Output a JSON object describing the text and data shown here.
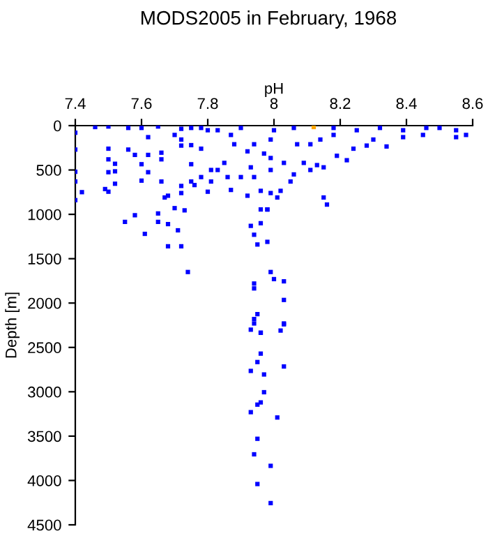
{
  "chart_data": {
    "type": "scatter",
    "title": "MODS2005 in February, 1968",
    "xlabel": "pH",
    "ylabel": "Depth [m]",
    "xlim": [
      7.4,
      8.6
    ],
    "xticks": [
      7.4,
      7.6,
      7.8,
      8,
      8.2,
      8.4,
      8.6
    ],
    "ylim": [
      4500,
      0
    ],
    "yticks": [
      0,
      500,
      1000,
      1500,
      2000,
      2500,
      3000,
      3500,
      4000,
      4500
    ],
    "marker": "square",
    "grid": false,
    "legend": false,
    "series": [
      {
        "color": "#0000ff",
        "x": [
          7.4,
          7.4,
          7.4,
          7.4,
          7.4,
          7.42,
          7.46,
          7.5,
          7.5,
          7.5,
          7.52,
          7.5,
          7.52,
          7.52,
          7.49,
          7.5,
          7.56,
          7.56,
          7.58,
          7.6,
          7.6,
          7.62,
          7.6,
          7.62,
          7.62,
          7.65,
          7.66,
          7.66,
          7.66,
          7.55,
          7.58,
          7.61,
          7.65,
          7.65,
          7.68,
          7.67,
          7.68,
          7.7,
          7.71,
          7.68,
          7.72,
          7.73,
          7.72,
          7.72,
          7.72,
          7.72,
          7.7,
          7.74,
          7.75,
          7.75,
          7.75,
          7.76,
          7.78,
          7.78,
          7.8,
          7.81,
          7.81,
          7.83,
          7.85,
          7.87,
          7.86,
          7.88,
          7.9,
          7.92,
          7.78,
          7.8,
          7.83,
          7.75,
          7.72,
          7.87,
          7.9,
          7.92,
          7.93,
          7.94,
          7.95,
          7.98,
          7.96,
          7.96,
          7.98,
          7.99,
          7.94,
          7.94,
          8.0,
          7.95,
          7.94,
          7.96,
          7.93,
          7.94,
          7.96,
          7.97,
          7.94,
          7.99,
          7.99,
          8.0,
          8.06,
          8.18,
          8.25,
          8.32,
          8.39,
          8.46,
          8.5,
          8.55,
          8.58,
          8.55,
          8.45,
          8.39,
          8.34,
          8.3,
          8.28,
          8.24,
          8.19,
          8.22,
          8.15,
          8.13,
          8.09,
          8.11,
          8.06,
          8.05,
          8.02,
          8.01,
          8.15,
          8.16,
          8.03,
          8.07,
          8.11,
          8.14,
          8.18,
          7.99,
          7.99,
          7.98,
          8.03,
          8.03,
          8.03,
          8.02,
          8.03,
          7.93,
          7.96,
          7.96,
          7.95,
          8.03,
          7.93,
          7.97,
          7.97,
          7.96,
          7.95,
          7.93,
          8.01,
          7.95,
          7.94,
          7.99,
          7.95,
          7.99,
          7.94
        ],
        "values": [
          80,
          270,
          520,
          630,
          840,
          750,
          16,
          10,
          260,
          380,
          430,
          525,
          515,
          655,
          715,
          745,
          26,
          270,
          330,
          435,
          620,
          525,
          26,
          130,
          330,
          10,
          305,
          380,
          630,
          1085,
          1010,
          1220,
          990,
          1085,
          1110,
          810,
          790,
          930,
          1180,
          1360,
          1360,
          955,
          680,
          760,
          157,
          225,
          105,
          1650,
          435,
          220,
          630,
          670,
          580,
          260,
          745,
          500,
          630,
          500,
          420,
          725,
          580,
          210,
          580,
          290,
          26,
          52,
          52,
          26,
          36,
          105,
          26,
          790,
          1130,
          1230,
          1340,
          1310,
          1100,
          945,
          945,
          1650,
          1780,
          1835,
          1730,
          2125,
          2230,
          2335,
          470,
          580,
          735,
          315,
          210,
          500,
          760,
          52,
          26,
          26,
          52,
          26,
          52,
          26,
          26,
          52,
          105,
          130,
          105,
          130,
          235,
          157,
          225,
          260,
          340,
          390,
          470,
          445,
          420,
          500,
          550,
          630,
          735,
          810,
          810,
          890,
          420,
          210,
          210,
          157,
          105,
          157,
          365,
          945,
          1755,
          1965,
          2230,
          2310,
          2240,
          2300,
          2335,
          2570,
          2665,
          2715,
          2765,
          2805,
          3005,
          3120,
          3145,
          3230,
          3290,
          3530,
          3705,
          3835,
          4040,
          4255,
          2180
        ]
      },
      {
        "color": "#ffa500",
        "x": [
          8.12
        ],
        "values": [
          16
        ]
      }
    ]
  }
}
